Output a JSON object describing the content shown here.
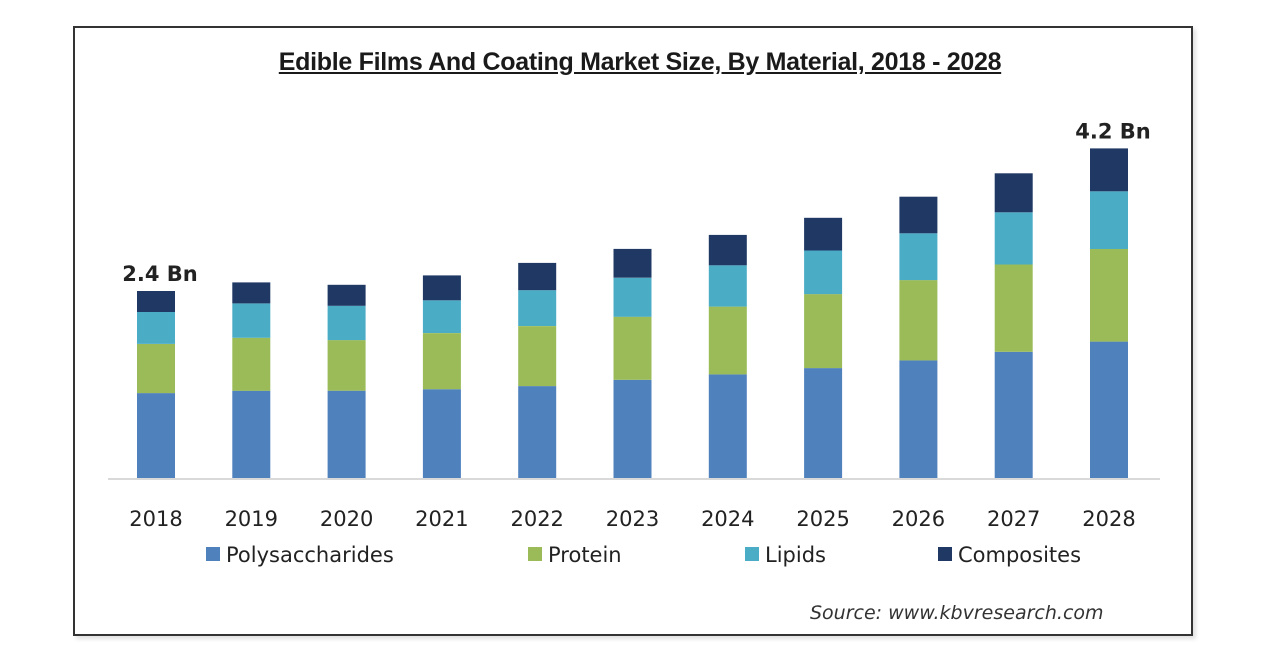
{
  "chart_data": {
    "type": "bar",
    "stacked": true,
    "title": "Edible Films And Coating Market Size, By Material, 2018 - 2028",
    "xlabel": "",
    "ylabel": "",
    "categories": [
      "2018",
      "2019",
      "2020",
      "2021",
      "2022",
      "2023",
      "2024",
      "2025",
      "2026",
      "2027",
      "2028"
    ],
    "series": [
      {
        "name": "Polysaccharides",
        "color": "#4f81bd",
        "values": [
          1.09,
          1.12,
          1.12,
          1.14,
          1.18,
          1.26,
          1.33,
          1.41,
          1.51,
          1.62,
          1.75
        ]
      },
      {
        "name": "Protein",
        "color": "#9bbb59",
        "values": [
          0.63,
          0.68,
          0.65,
          0.72,
          0.77,
          0.81,
          0.87,
          0.95,
          1.03,
          1.12,
          1.19
        ]
      },
      {
        "name": "Lipids",
        "color": "#4bacc6",
        "values": [
          0.41,
          0.44,
          0.44,
          0.42,
          0.46,
          0.5,
          0.53,
          0.56,
          0.6,
          0.67,
          0.74
        ]
      },
      {
        "name": "Composites",
        "color": "#1f3864",
        "values": [
          0.27,
          0.27,
          0.27,
          0.32,
          0.35,
          0.37,
          0.39,
          0.42,
          0.47,
          0.5,
          0.55
        ]
      }
    ],
    "ylim": [
      0,
      4.3
    ],
    "grid": false,
    "y_axis_visible": false,
    "legend": {
      "placement": "bottom",
      "entries": [
        "Polysaccharides",
        "Protein",
        "Lipids",
        "Composites"
      ]
    },
    "annotations": [
      {
        "category": "2018",
        "text": "2.4 Bn"
      },
      {
        "category": "2028",
        "text": "4.2 Bn"
      }
    ],
    "unit": "Bn"
  },
  "source_text": "Source:  www.kbvresearch.com"
}
